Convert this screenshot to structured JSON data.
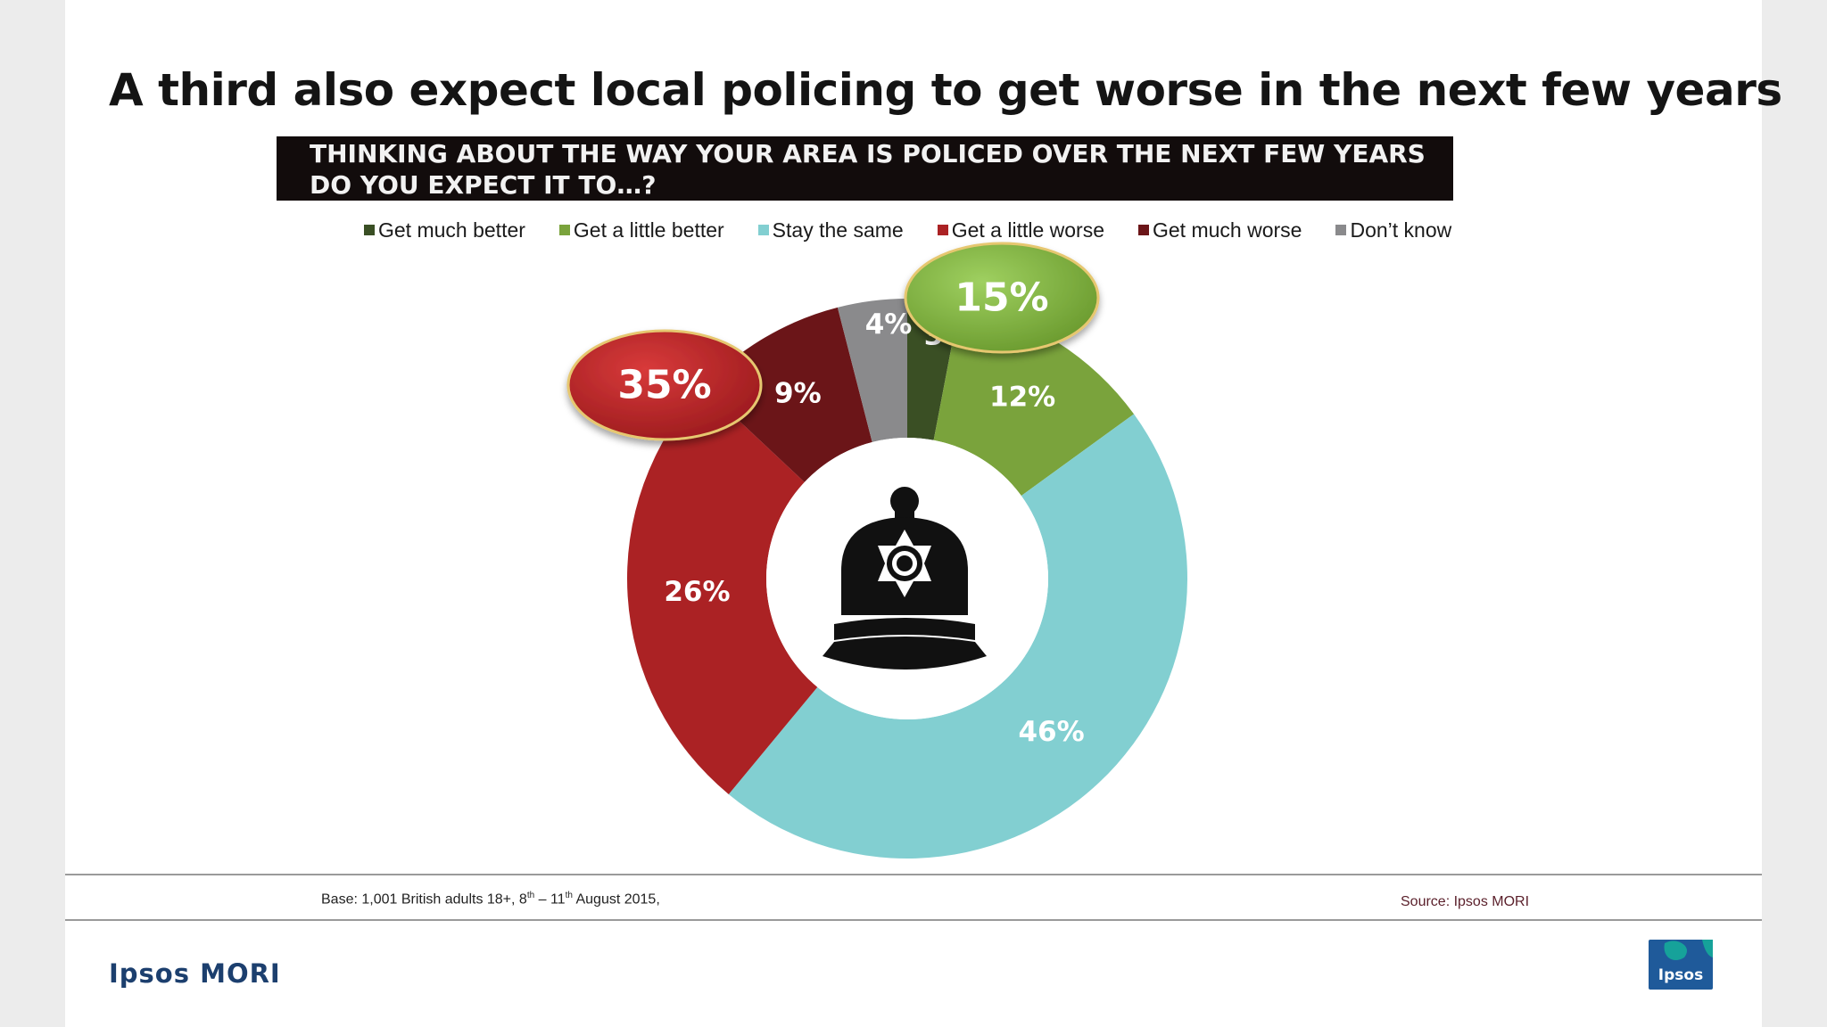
{
  "title": "A third also expect local policing to get worse in the next few years",
  "question": "THINKING ABOUT THE WAY YOUR AREA IS POLICED OVER THE NEXT FEW YEARS DO YOU EXPECT IT TO…?",
  "chart_data": {
    "type": "pie",
    "variant": "donut",
    "start_angle_deg": 0,
    "categories": [
      "Get much better",
      "Get a little better",
      "Stay the same",
      "Get a little worse",
      "Get much worse",
      "Don’t know"
    ],
    "values": [
      3,
      12,
      46,
      26,
      9,
      4
    ],
    "labels": [
      "3%",
      "12%",
      "46%",
      "26%",
      "9%",
      "4%"
    ],
    "colors": [
      "#3a4f24",
      "#7aa33c",
      "#82cfd1",
      "#ab2224",
      "#6b1518",
      "#8a8a8c"
    ],
    "callouts": [
      {
        "text": "15%",
        "color": "#7db040",
        "groups": [
          "Get much better",
          "Get a little better"
        ]
      },
      {
        "text": "35%",
        "color": "#c2272a",
        "groups": [
          "Get a little worse",
          "Get much worse"
        ]
      }
    ],
    "legend_position": "top"
  },
  "center_icon": "police-helmet-icon",
  "footer": {
    "base": "Base: 1,001 British adults 18+, 8th – 11th August 2015,",
    "source": "Source: Ipsos MORI",
    "brand": "Ipsos MORI",
    "logo_text": "Ipsos",
    "logo_color": "#1f5a9a",
    "logo_accent": "#16a29a"
  }
}
